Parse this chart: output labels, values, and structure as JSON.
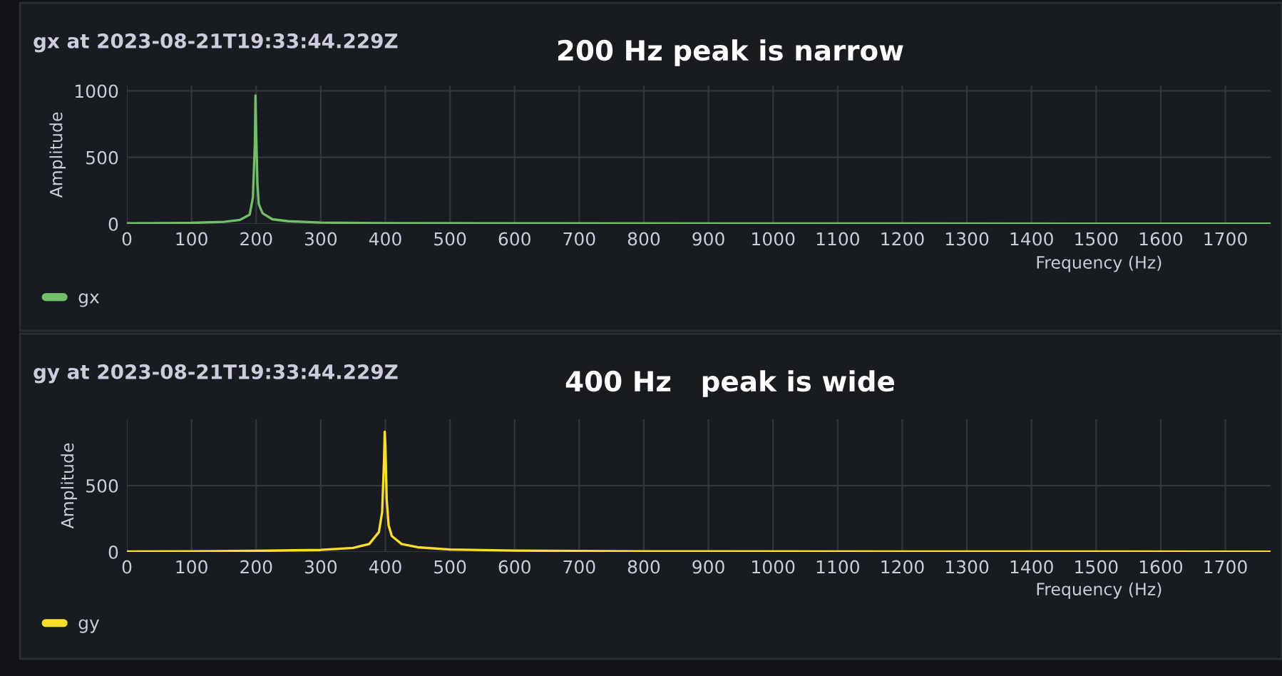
{
  "chart_data": [
    {
      "type": "line",
      "title": "gx at 2023-08-21T19:33:44.229Z",
      "annotations": [
        "200 Hz peak is narrow"
      ],
      "xlabel": "Frequency (Hz)",
      "ylabel": "Amplitude",
      "xlim": [
        0,
        1770
      ],
      "xticks": [
        0,
        100,
        200,
        300,
        400,
        500,
        600,
        700,
        800,
        900,
        1000,
        1100,
        1200,
        1300,
        1400,
        1500,
        1600,
        1700
      ],
      "ylim": [
        0,
        1040
      ],
      "yticks": [
        0,
        500,
        1000
      ],
      "grid": true,
      "legend": "bottom left",
      "x": [
        0,
        100,
        150,
        175,
        190,
        195,
        198,
        199,
        200,
        202,
        204,
        210,
        225,
        250,
        300,
        400,
        600,
        1000,
        1770
      ],
      "series": [
        {
          "name": "gx",
          "color": "#73bf69",
          "values": [
            5,
            8,
            15,
            30,
            70,
            200,
            600,
            965,
            700,
            300,
            150,
            80,
            35,
            20,
            10,
            6,
            4,
            3,
            2
          ]
        }
      ]
    },
    {
      "type": "line",
      "title": "gy at 2023-08-21T19:33:44.229Z",
      "annotations": [
        "400 Hz   peak is wide"
      ],
      "xlabel": "Frequency (Hz)",
      "ylabel": "Amplitude",
      "xlim": [
        0,
        1770
      ],
      "xticks": [
        0,
        100,
        200,
        300,
        400,
        500,
        600,
        700,
        800,
        900,
        1000,
        1100,
        1200,
        1300,
        1400,
        1500,
        1600,
        1700
      ],
      "ylim": [
        0,
        1000
      ],
      "yticks": [
        0,
        500
      ],
      "grid": true,
      "legend": "bottom left",
      "x": [
        0,
        100,
        200,
        300,
        350,
        375,
        390,
        395,
        398,
        399,
        400,
        402,
        405,
        410,
        425,
        450,
        500,
        600,
        800,
        1200,
        1770
      ],
      "series": [
        {
          "name": "gy",
          "color": "#fade2a",
          "values": [
            3,
            5,
            8,
            15,
            30,
            60,
            150,
            300,
            700,
            906,
            800,
            400,
            200,
            120,
            60,
            35,
            18,
            10,
            5,
            3,
            2
          ]
        }
      ]
    }
  ]
}
